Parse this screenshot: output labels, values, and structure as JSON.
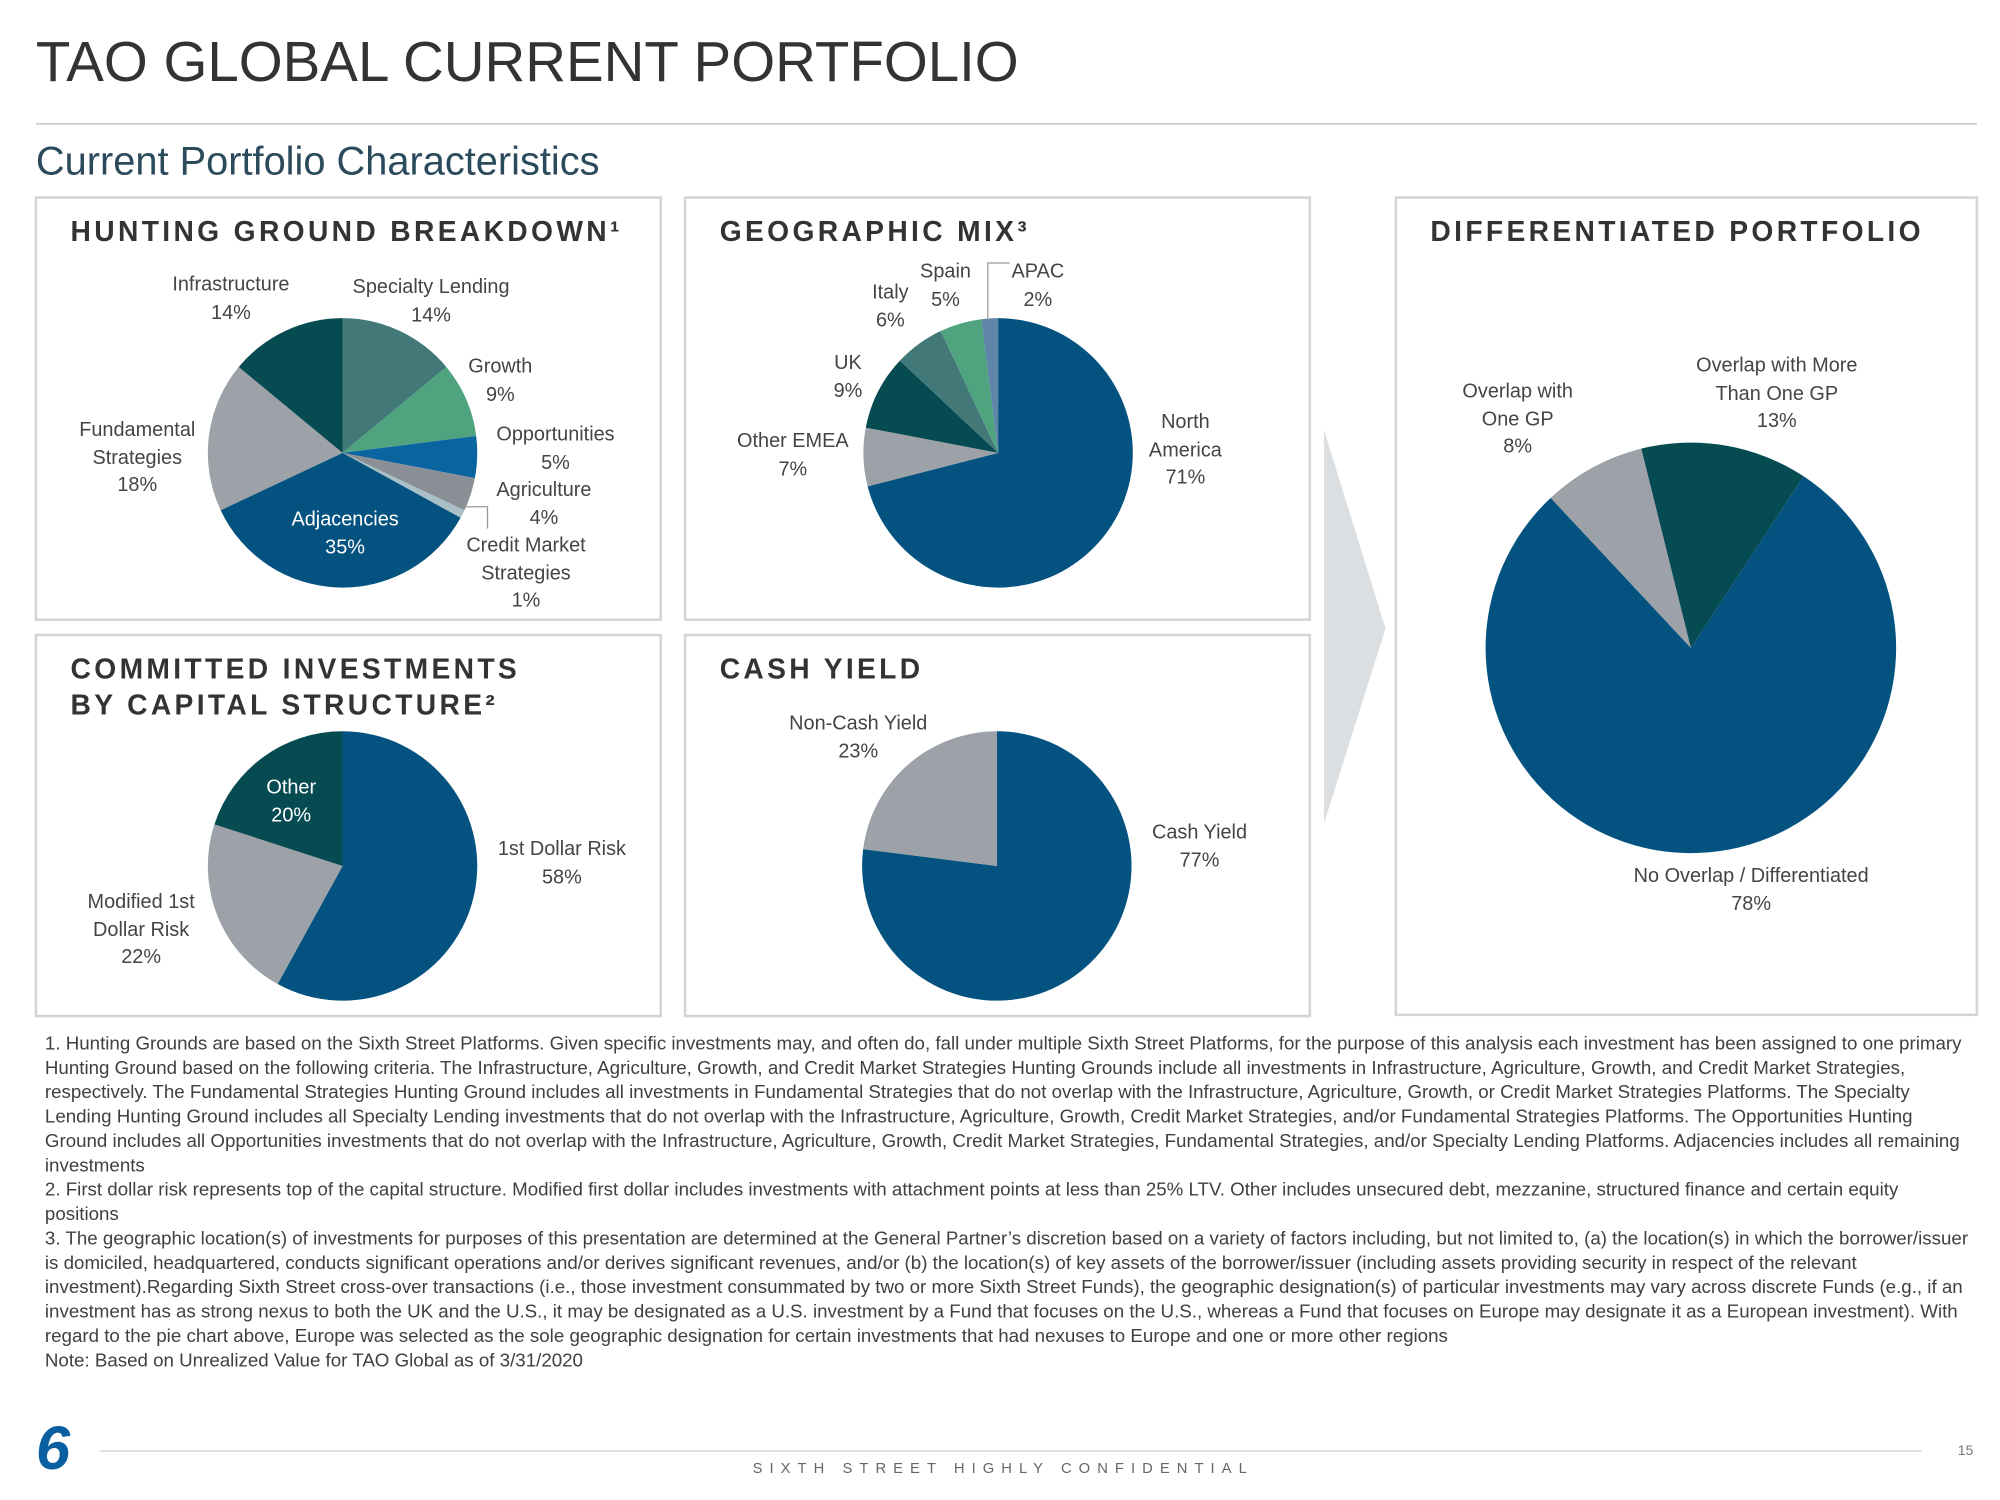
{
  "header": {
    "title": "TAO GLOBAL CURRENT PORTFOLIO",
    "subtitle": "Current Portfolio Characteristics"
  },
  "chart_data": [
    {
      "type": "pie",
      "title": "HUNTING GROUND BREAKDOWN¹",
      "categories": [
        "Specialty Lending",
        "Growth",
        "Opportunities",
        "Agriculture",
        "Credit Market\nStrategies",
        "Adjacencies",
        "Fundamental\nStrategies",
        "Infrastructure"
      ],
      "values": [
        14,
        9,
        5,
        4,
        1,
        35,
        18,
        14
      ],
      "value_labels": [
        "14%",
        "9%",
        "5%",
        "4%",
        "1%",
        "35%",
        "18%",
        "14%"
      ],
      "colors": [
        "#427878",
        "#4fa37f",
        "#0a64a0",
        "#8a8f95",
        "#a9c0c8",
        "#04527f",
        "#9da2a8",
        "#064a52"
      ]
    },
    {
      "type": "pie",
      "title": "GEOGRAPHIC MIX³",
      "categories": [
        "North\nAmerica",
        "Other EMEA",
        "UK",
        "Italy",
        "Spain",
        "APAC"
      ],
      "values": [
        71,
        7,
        9,
        6,
        5,
        2
      ],
      "value_labels": [
        "71%",
        "7%",
        "9%",
        "6%",
        "5%",
        "2%"
      ],
      "colors": [
        "#04527f",
        "#9da2a8",
        "#064a52",
        "#427878",
        "#4fa37f",
        "#5f86a8"
      ]
    },
    {
      "type": "pie",
      "title": "COMMITTED INVESTMENTS\nBY CAPITAL STRUCTURE²",
      "categories": [
        "1st Dollar Risk",
        "Modified 1st\nDollar Risk",
        "Other"
      ],
      "values": [
        58,
        22,
        20
      ],
      "value_labels": [
        "58%",
        "22%",
        "20%"
      ],
      "colors": [
        "#04527f",
        "#9da2a8",
        "#064a52"
      ]
    },
    {
      "type": "pie",
      "title": "CASH YIELD",
      "categories": [
        "Cash Yield",
        "Non-Cash Yield"
      ],
      "values": [
        77,
        23
      ],
      "value_labels": [
        "77%",
        "23%"
      ],
      "colors": [
        "#04527f",
        "#9da2a8"
      ]
    },
    {
      "type": "pie",
      "title": "DIFFERENTIATED PORTFOLIO",
      "categories": [
        "No Overlap / Differentiated",
        "Overlap with\nOne GP",
        "Overlap with More\nThan One GP"
      ],
      "values": [
        78,
        8,
        13
      ],
      "value_labels": [
        "78%",
        "8%",
        "13%"
      ],
      "colors": [
        "#04527f",
        "#9da2a8",
        "#064a52"
      ]
    }
  ],
  "footnotes": [
    "1. Hunting Grounds are based on the Sixth Street Platforms. Given specific investments may, and often do, fall under multiple Sixth Street Platforms, for the purpose of this analysis each investment has been assigned to one primary Hunting Ground based on the following criteria. The Infrastructure, Agriculture, Growth, and Credit Market Strategies Hunting Grounds include all investments in Infrastructure, Agriculture, Growth, and Credit Market Strategies, respectively. The Fundamental Strategies Hunting Ground includes all investments in Fundamental Strategies that do not overlap with the Infrastructure, Agriculture, Growth, or Credit Market Strategies Platforms. The Specialty Lending Hunting Ground includes all Specialty Lending investments that do not overlap with the Infrastructure, Agriculture, Growth, Credit Market Strategies, and/or Fundamental Strategies Platforms. The Opportunities Hunting Ground includes all Opportunities investments that do not overlap with the Infrastructure, Agriculture, Growth, Credit Market Strategies, Fundamental Strategies, and/or Specialty Lending Platforms. Adjacencies includes all remaining investments",
    "2. First dollar risk represents top of the capital structure. Modified first dollar includes investments with attachment points at less than 25% LTV. Other includes unsecured debt, mezzanine, structured finance and certain equity positions",
    "3. The geographic location(s) of investments for purposes of this presentation are determined at the General Partner’s discretion based on a variety of factors including, but not limited to, (a) the location(s) in which the borrower/issuer is domiciled, headquartered, conducts significant operations and/or derives significant revenues, and/or (b) the location(s) of key assets of the borrower/issuer (including assets providing security in respect of the relevant investment).Regarding Sixth Street cross-over transactions (i.e., those investment consummated by two or more Sixth Street Funds), the geographic designation(s) of particular investments may vary across discrete Funds (e.g., if an investment has as strong nexus to both the UK and the U.S., it may be designated as a U.S. investment by a Fund that focuses on the U.S., whereas a Fund that focuses on Europe may designate it as a European investment). With regard to the pie chart above, Europe was selected as the sole geographic designation for certain investments that had nexuses to Europe and one or more other regions",
    "Note: Based on Unrealized Value for TAO Global as of 3/31/2020"
  ],
  "footer": {
    "logo": "6",
    "confidential": "SIXTH STREET HIGHLY CONFIDENTIAL",
    "page": "15"
  }
}
